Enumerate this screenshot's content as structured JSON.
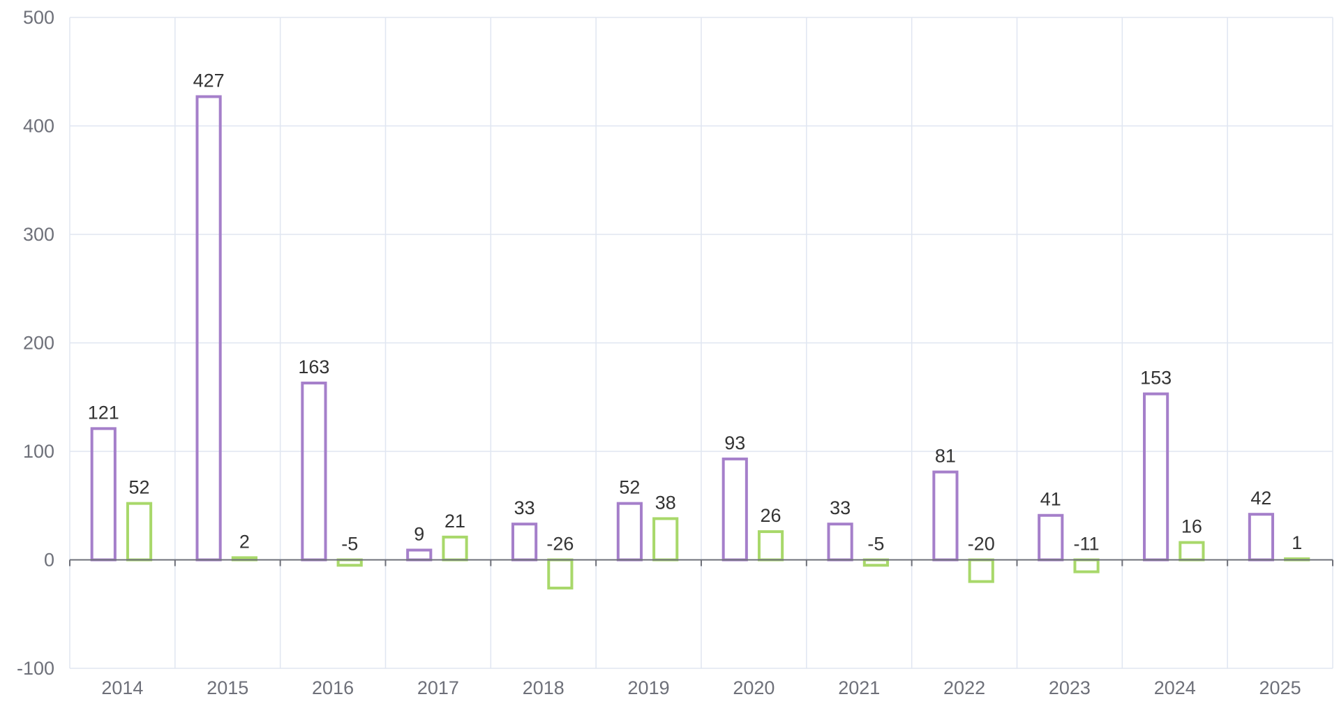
{
  "chart_data": {
    "type": "bar",
    "title": "",
    "xlabel": "",
    "ylabel": "",
    "categories": [
      "2014",
      "2015",
      "2016",
      "2017",
      "2018",
      "2019",
      "2020",
      "2021",
      "2022",
      "2023",
      "2024",
      "2025"
    ],
    "series": [
      {
        "values": [
          121,
          427,
          163,
          9,
          33,
          52,
          93,
          33,
          81,
          41,
          153,
          42
        ],
        "color": "#a57fca"
      },
      {
        "values": [
          52,
          2,
          -5,
          21,
          -26,
          38,
          26,
          -5,
          -20,
          -11,
          16,
          1
        ],
        "color": "#a8d86a"
      }
    ],
    "ylim": [
      -100,
      500
    ],
    "yticks": [
      -100,
      0,
      100,
      200,
      300,
      400,
      500
    ],
    "grid": true,
    "bar_style": "outlined",
    "colors": {
      "grid": "#e0e6f1",
      "axis": "#6e7079",
      "tick_text": "#6e7079",
      "label_text": "#333333"
    }
  }
}
